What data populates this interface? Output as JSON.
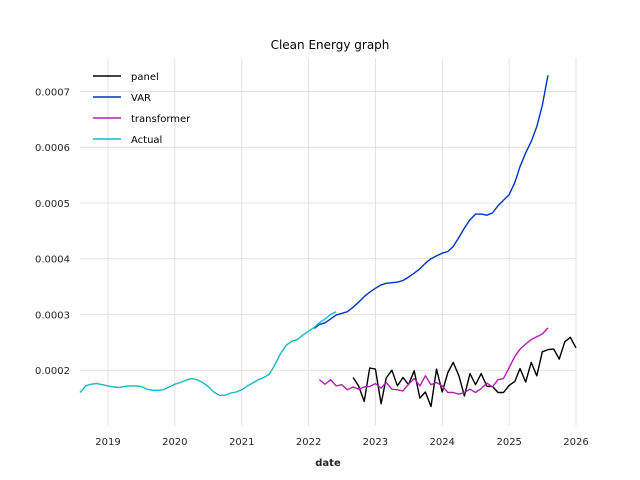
{
  "chart_data": {
    "type": "line",
    "title": "Clean Energy graph",
    "xlabel": "date",
    "ylabel": "",
    "xlim": [
      "2018-08-01",
      "2026-01-01"
    ],
    "ylim": [
      0.0001,
      0.00076
    ],
    "grid": true,
    "legend_placement": "top-left",
    "x_ticks": [
      "2019",
      "2020",
      "2021",
      "2022",
      "2023",
      "2024",
      "2025",
      "2026"
    ],
    "y_ticks": [
      "0.0002",
      "0.0003",
      "0.0004",
      "0.0005",
      "0.0006",
      "0.0007"
    ],
    "y_tick_values": [
      0.0002,
      0.0003,
      0.0004,
      0.0005,
      0.0006,
      0.0007
    ],
    "series": [
      {
        "name": "panel",
        "color": "#000000",
        "x": [
          "2022-09-01",
          "2022-10-01",
          "2022-11-01",
          "2022-12-01",
          "2023-01-01",
          "2023-02-01",
          "2023-03-01",
          "2023-04-01",
          "2023-05-01",
          "2023-06-01",
          "2023-07-01",
          "2023-08-01",
          "2023-09-01",
          "2023-10-01",
          "2023-11-01",
          "2023-12-01",
          "2024-01-01",
          "2024-02-01",
          "2024-03-01",
          "2024-04-01",
          "2024-05-01",
          "2024-06-01",
          "2024-07-01",
          "2024-08-01",
          "2024-09-01",
          "2024-10-01",
          "2024-11-01",
          "2024-12-01",
          "2025-01-01",
          "2025-02-01",
          "2025-03-01",
          "2025-04-01",
          "2025-05-01",
          "2025-06-01",
          "2025-07-01",
          "2025-08-01",
          "2025-09-01",
          "2025-10-01",
          "2025-11-01",
          "2025-12-01",
          "2026-01-01"
        ],
        "values": [
          0.000187,
          0.000172,
          0.000144,
          0.000204,
          0.000202,
          0.00014,
          0.000186,
          0.0002,
          0.000172,
          0.000187,
          0.000174,
          0.000199,
          0.00015,
          0.000161,
          0.000135,
          0.000202,
          0.000161,
          0.000196,
          0.000214,
          0.00019,
          0.000154,
          0.000194,
          0.000174,
          0.000194,
          0.000171,
          0.000171,
          0.00016,
          0.00016,
          0.000173,
          0.00018,
          0.000203,
          0.000179,
          0.000214,
          0.00019,
          0.000233,
          0.000237,
          0.000238,
          0.00022,
          0.000251,
          0.000259,
          0.00024
        ]
      },
      {
        "name": "VAR",
        "color": "#0033cc",
        "x": [
          "2022-02-01",
          "2022-03-01",
          "2022-04-01",
          "2022-05-01",
          "2022-06-01",
          "2022-07-01",
          "2022-08-01",
          "2022-09-01",
          "2022-10-01",
          "2022-11-01",
          "2022-12-01",
          "2023-01-01",
          "2023-02-01",
          "2023-03-01",
          "2023-04-01",
          "2023-05-01",
          "2023-06-01",
          "2023-07-01",
          "2023-08-01",
          "2023-09-01",
          "2023-10-01",
          "2023-11-01",
          "2023-12-01",
          "2024-01-01",
          "2024-02-01",
          "2024-03-01",
          "2024-04-01",
          "2024-05-01",
          "2024-06-01",
          "2024-07-01",
          "2024-08-01",
          "2024-09-01",
          "2024-10-01",
          "2024-11-01",
          "2024-12-01",
          "2025-01-01",
          "2025-02-01",
          "2025-03-01",
          "2025-04-01",
          "2025-05-01",
          "2025-06-01",
          "2025-07-01",
          "2025-08-01"
        ],
        "values": [
          0.000275,
          0.000282,
          0.000285,
          0.000292,
          0.000299,
          0.000302,
          0.000305,
          0.000313,
          0.000322,
          0.000332,
          0.00034,
          0.000347,
          0.000353,
          0.000356,
          0.000357,
          0.000358,
          0.000361,
          0.000367,
          0.000374,
          0.000382,
          0.000392,
          0.0004,
          0.000405,
          0.00041,
          0.000413,
          0.000422,
          0.000438,
          0.000455,
          0.00047,
          0.00048,
          0.00048,
          0.000478,
          0.000482,
          0.000495,
          0.000505,
          0.000515,
          0.000537,
          0.000565,
          0.00059,
          0.00061,
          0.000637,
          0.000675,
          0.000729
        ]
      },
      {
        "name": "transformer",
        "color": "#b21fb2",
        "x": [
          "2022-03-01",
          "2022-04-01",
          "2022-05-01",
          "2022-06-01",
          "2022-07-01",
          "2022-08-01",
          "2022-09-01",
          "2022-10-01",
          "2022-11-01",
          "2022-12-01",
          "2023-01-01",
          "2023-02-01",
          "2023-03-01",
          "2023-04-01",
          "2023-05-01",
          "2023-06-01",
          "2023-07-01",
          "2023-08-01",
          "2023-09-01",
          "2023-10-01",
          "2023-11-01",
          "2023-12-01",
          "2024-01-01",
          "2024-02-01",
          "2024-03-01",
          "2024-04-01",
          "2024-05-01",
          "2024-06-01",
          "2024-07-01",
          "2024-08-01",
          "2024-09-01",
          "2024-10-01",
          "2024-11-01",
          "2024-12-01",
          "2025-01-01",
          "2025-02-01",
          "2025-03-01",
          "2025-04-01",
          "2025-05-01",
          "2025-06-01",
          "2025-07-01",
          "2025-08-01"
        ],
        "values": [
          0.000183,
          0.000175,
          0.000183,
          0.000172,
          0.000174,
          0.000165,
          0.00017,
          0.000166,
          0.00017,
          0.000171,
          0.000176,
          0.000168,
          0.000178,
          0.000166,
          0.000165,
          0.000163,
          0.000175,
          0.000185,
          0.000172,
          0.00019,
          0.000174,
          0.000178,
          0.000172,
          0.00016,
          0.00016,
          0.000157,
          0.00016,
          0.000166,
          0.00016,
          0.000167,
          0.000177,
          0.00017,
          0.000183,
          0.000185,
          0.000205,
          0.000225,
          0.000238,
          0.000247,
          0.000255,
          0.00026,
          0.000265,
          0.000276
        ]
      },
      {
        "name": "Actual",
        "color": "#17b8c6",
        "x": [
          "2018-08-01",
          "2018-09-01",
          "2018-10-01",
          "2018-11-01",
          "2018-12-01",
          "2019-01-01",
          "2019-02-01",
          "2019-03-01",
          "2019-04-01",
          "2019-05-01",
          "2019-06-01",
          "2019-07-01",
          "2019-08-01",
          "2019-09-01",
          "2019-10-01",
          "2019-11-01",
          "2019-12-01",
          "2020-01-01",
          "2020-02-01",
          "2020-03-01",
          "2020-04-01",
          "2020-05-01",
          "2020-06-01",
          "2020-07-01",
          "2020-08-01",
          "2020-09-01",
          "2020-10-01",
          "2020-11-01",
          "2020-12-01",
          "2021-01-01",
          "2021-02-01",
          "2021-03-01",
          "2021-04-01",
          "2021-05-01",
          "2021-06-01",
          "2021-07-01",
          "2021-08-01",
          "2021-09-01",
          "2021-10-01",
          "2021-11-01",
          "2021-12-01",
          "2022-01-01",
          "2022-02-01",
          "2022-03-01",
          "2022-04-01",
          "2022-05-01",
          "2022-06-01"
        ],
        "values": [
          0.00016,
          0.000172,
          0.000175,
          0.000176,
          0.000174,
          0.000172,
          0.00017,
          0.000169,
          0.000171,
          0.000172,
          0.000172,
          0.000171,
          0.000166,
          0.000164,
          0.000164,
          0.000165,
          0.00017,
          0.000175,
          0.000178,
          0.000182,
          0.000185,
          0.000183,
          0.000178,
          0.000171,
          0.000161,
          0.000155,
          0.000155,
          0.000159,
          0.000161,
          0.000165,
          0.000172,
          0.000177,
          0.000183,
          0.000187,
          0.000193,
          0.00021,
          0.00023,
          0.000245,
          0.000252,
          0.000255,
          0.000263,
          0.00027,
          0.000277,
          0.000285,
          0.000292,
          0.0003,
          0.000305
        ]
      }
    ]
  }
}
